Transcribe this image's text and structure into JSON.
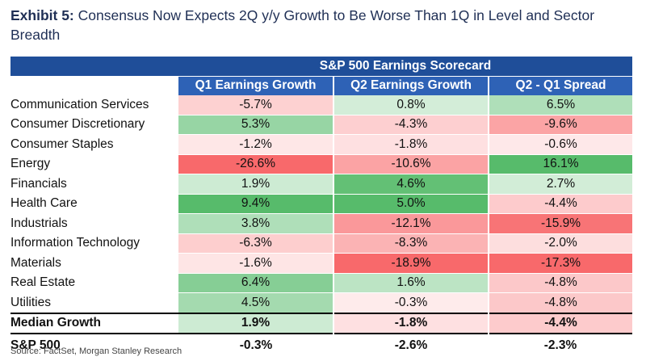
{
  "heading": {
    "label": "Exhibit 5:",
    "text": "Consensus Now Expects 2Q y/y Growth to Be Worse Than 1Q in Level and Sector Breadth"
  },
  "table": {
    "title": "S&P 500 Earnings Scorecard",
    "columns": [
      "Q1 Earnings Growth",
      "Q2 Earnings Growth",
      "Q2 - Q1 Spread"
    ],
    "rows": [
      {
        "sector": "Communication Services",
        "q1": "-5.7%",
        "q2": "0.8%",
        "spread": "6.5%"
      },
      {
        "sector": "Consumer Discretionary",
        "q1": "5.3%",
        "q2": "-4.3%",
        "spread": "-9.6%"
      },
      {
        "sector": "Consumer Staples",
        "q1": "-1.2%",
        "q2": "-1.8%",
        "spread": "-0.6%"
      },
      {
        "sector": "Energy",
        "q1": "-26.6%",
        "q2": "-10.6%",
        "spread": "16.1%"
      },
      {
        "sector": "Financials",
        "q1": "1.9%",
        "q2": "4.6%",
        "spread": "2.7%"
      },
      {
        "sector": "Health Care",
        "q1": "9.4%",
        "q2": "5.0%",
        "spread": "-4.4%"
      },
      {
        "sector": "Industrials",
        "q1": "3.8%",
        "q2": "-12.1%",
        "spread": "-15.9%"
      },
      {
        "sector": "Information Technology",
        "q1": "-6.3%",
        "q2": "-8.3%",
        "spread": "-2.0%"
      },
      {
        "sector": "Materials",
        "q1": "-1.6%",
        "q2": "-18.9%",
        "spread": "-17.3%"
      },
      {
        "sector": "Real Estate",
        "q1": "6.4%",
        "q2": "1.6%",
        "spread": "-4.8%"
      },
      {
        "sector": "Utilities",
        "q1": "4.5%",
        "q2": "-0.3%",
        "spread": "-4.8%"
      }
    ],
    "median": {
      "label": "Median Growth",
      "q1": "1.9%",
      "q2": "-1.8%",
      "spread": "-4.4%"
    },
    "sp500": {
      "label": "S&P 500",
      "q1": "-0.3%",
      "q2": "-2.6%",
      "spread": "-2.3%"
    }
  },
  "source": "Source: FactSet, Morgan Stanley Research",
  "colors": {
    "banner": "#1f4e99",
    "header": "#2e62b6",
    "positive": "#57bb6b",
    "negative": "#f8696b"
  }
}
